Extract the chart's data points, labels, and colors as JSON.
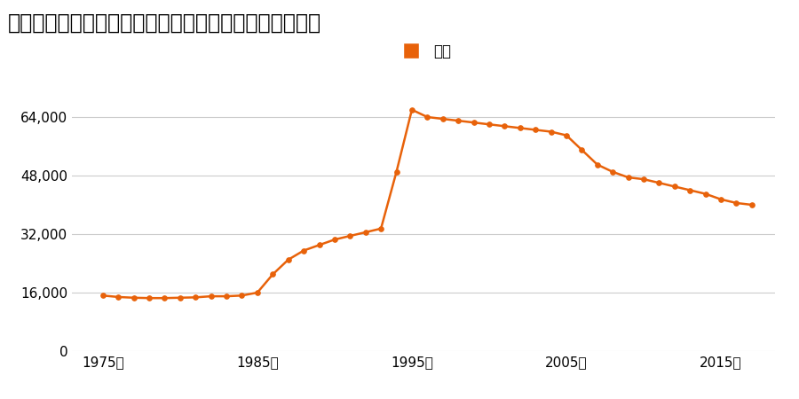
{
  "title": "群馬県伊勢崎市太田町字北赤坂９２８番２５の地価推移",
  "legend_label": "価格",
  "line_color": "#e8620a",
  "marker_color": "#e8620a",
  "background_color": "#ffffff",
  "ylim": [
    0,
    72000
  ],
  "yticks": [
    0,
    16000,
    32000,
    48000,
    64000
  ],
  "xtick_labels": [
    "1975年",
    "1985年",
    "1995年",
    "2005年",
    "2015年"
  ],
  "xtick_positions": [
    1975,
    1985,
    1995,
    2005,
    2015
  ],
  "years": [
    1975,
    1976,
    1977,
    1978,
    1979,
    1980,
    1981,
    1982,
    1983,
    1984,
    1985,
    1986,
    1987,
    1988,
    1989,
    1990,
    1991,
    1992,
    1993,
    1994,
    1995,
    1996,
    1997,
    1998,
    1999,
    2000,
    2001,
    2002,
    2003,
    2004,
    2005,
    2006,
    2007,
    2008,
    2009,
    2010,
    2011,
    2012,
    2013,
    2014,
    2015,
    2016,
    2017
  ],
  "values": [
    15200,
    14800,
    14600,
    14500,
    14500,
    14600,
    14700,
    15000,
    15000,
    15200,
    16000,
    21000,
    25000,
    27500,
    29000,
    30500,
    31500,
    32500,
    33500,
    49000,
    66000,
    64000,
    63500,
    63000,
    62500,
    62000,
    61500,
    61000,
    60500,
    60000,
    59000,
    55000,
    51000,
    49000,
    47500,
    47000,
    46000,
    45000,
    44000,
    43000,
    41500,
    40500,
    40000
  ]
}
